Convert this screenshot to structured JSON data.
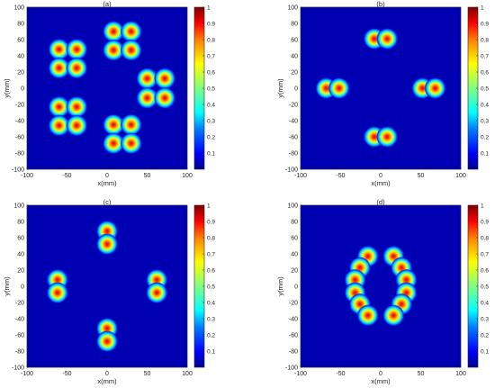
{
  "figure": {
    "colormap": "jet",
    "background_color": "#0000b3"
  },
  "chart_data": [
    {
      "type": "heatmap",
      "title": "(a)",
      "xlabel": "x(mm)",
      "ylabel": "y(mm)",
      "xlim": [
        -100,
        100
      ],
      "ylim": [
        -100,
        100
      ],
      "xticks": [
        -100,
        -50,
        0,
        50,
        100
      ],
      "yticks": [
        -100,
        -80,
        -60,
        -40,
        -20,
        0,
        20,
        40,
        60,
        80,
        100
      ],
      "colorbar": {
        "range": [
          0,
          1
        ],
        "ticks": [
          0.1,
          0.2,
          0.3,
          0.4,
          0.5,
          0.6,
          0.7,
          0.8,
          0.9,
          1
        ]
      },
      "peaks": [
        {
          "x": -60,
          "y": 48,
          "v": 1
        },
        {
          "x": -38,
          "y": 48,
          "v": 1
        },
        {
          "x": -60,
          "y": 25,
          "v": 1
        },
        {
          "x": -38,
          "y": 25,
          "v": 1
        },
        {
          "x": 8,
          "y": 70,
          "v": 1
        },
        {
          "x": 30,
          "y": 70,
          "v": 1
        },
        {
          "x": 8,
          "y": 47,
          "v": 1
        },
        {
          "x": 30,
          "y": 47,
          "v": 1
        },
        {
          "x": 50,
          "y": 12,
          "v": 1
        },
        {
          "x": 72,
          "y": 12,
          "v": 1
        },
        {
          "x": 50,
          "y": -12,
          "v": 1
        },
        {
          "x": 72,
          "y": -12,
          "v": 1
        },
        {
          "x": -60,
          "y": -23,
          "v": 1
        },
        {
          "x": -38,
          "y": -23,
          "v": 1
        },
        {
          "x": -60,
          "y": -46,
          "v": 1
        },
        {
          "x": -38,
          "y": -46,
          "v": 1
        },
        {
          "x": 8,
          "y": -45,
          "v": 1
        },
        {
          "x": 30,
          "y": -45,
          "v": 1
        },
        {
          "x": 8,
          "y": -68,
          "v": 1
        },
        {
          "x": 30,
          "y": -68,
          "v": 1
        }
      ]
    },
    {
      "type": "heatmap",
      "title": "(b)",
      "xlabel": "x(mm)",
      "ylabel": "y(mm)",
      "xlim": [
        -100,
        100
      ],
      "ylim": [
        -100,
        100
      ],
      "xticks": [
        -100,
        -50,
        0,
        50,
        100
      ],
      "yticks": [
        -100,
        -80,
        -60,
        -40,
        -20,
        0,
        20,
        40,
        60,
        80,
        100
      ],
      "colorbar": {
        "range": [
          0,
          1
        ],
        "ticks": [
          0.1,
          0.2,
          0.3,
          0.4,
          0.5,
          0.6,
          0.7,
          0.8,
          0.9,
          1
        ]
      },
      "peaks": [
        {
          "x": -8,
          "y": 61,
          "v": 1
        },
        {
          "x": 8,
          "y": 61,
          "v": 1
        },
        {
          "x": -8,
          "y": -60,
          "v": 1
        },
        {
          "x": 8,
          "y": -60,
          "v": 1
        },
        {
          "x": -68,
          "y": 0,
          "v": 1
        },
        {
          "x": -52,
          "y": 0,
          "v": 1
        },
        {
          "x": 52,
          "y": 0,
          "v": 1
        },
        {
          "x": 68,
          "y": 0,
          "v": 1
        }
      ]
    },
    {
      "type": "heatmap",
      "title": "(c)",
      "xlabel": "x(mm)",
      "ylabel": "y(mm)",
      "xlim": [
        -100,
        100
      ],
      "ylim": [
        -100,
        100
      ],
      "xticks": [
        -100,
        -50,
        0,
        50,
        100
      ],
      "yticks": [
        -100,
        -80,
        -60,
        -40,
        -20,
        0,
        20,
        40,
        60,
        80,
        100
      ],
      "colorbar": {
        "range": [
          0,
          1
        ],
        "ticks": [
          0.1,
          0.2,
          0.3,
          0.4,
          0.5,
          0.6,
          0.7,
          0.8,
          0.9,
          1
        ]
      },
      "peaks": [
        {
          "x": 0,
          "y": 68,
          "v": 1
        },
        {
          "x": 0,
          "y": 52,
          "v": 1
        },
        {
          "x": 0,
          "y": -52,
          "v": 1
        },
        {
          "x": 0,
          "y": -68,
          "v": 1
        },
        {
          "x": -62,
          "y": 8,
          "v": 1
        },
        {
          "x": -62,
          "y": -8,
          "v": 1
        },
        {
          "x": 62,
          "y": 8,
          "v": 1
        },
        {
          "x": 62,
          "y": -8,
          "v": 1
        }
      ]
    },
    {
      "type": "heatmap",
      "title": "(d)",
      "xlabel": "x(mm)",
      "ylabel": "y(mm)",
      "xlim": [
        -100,
        100
      ],
      "ylim": [
        -100,
        100
      ],
      "xticks": [
        -100,
        -50,
        0,
        50,
        100
      ],
      "yticks": [
        -100,
        -80,
        -60,
        -40,
        -20,
        0,
        20,
        40,
        60,
        80,
        100
      ],
      "colorbar": {
        "range": [
          0,
          1
        ],
        "ticks": [
          0.1,
          0.2,
          0.3,
          0.4,
          0.5,
          0.6,
          0.7,
          0.8,
          0.9,
          1
        ]
      },
      "peaks": [
        {
          "x": -16,
          "y": 37,
          "v": 1
        },
        {
          "x": -26,
          "y": 23,
          "v": 1
        },
        {
          "x": -32,
          "y": 8,
          "v": 1
        },
        {
          "x": -32,
          "y": -8,
          "v": 1
        },
        {
          "x": -26,
          "y": -22,
          "v": 1
        },
        {
          "x": -16,
          "y": -36,
          "v": 1
        },
        {
          "x": 16,
          "y": 37,
          "v": 1
        },
        {
          "x": 26,
          "y": 23,
          "v": 1
        },
        {
          "x": 32,
          "y": 8,
          "v": 1
        },
        {
          "x": 32,
          "y": -8,
          "v": 1
        },
        {
          "x": 26,
          "y": -22,
          "v": 1
        },
        {
          "x": 16,
          "y": -36,
          "v": 1
        }
      ]
    }
  ]
}
